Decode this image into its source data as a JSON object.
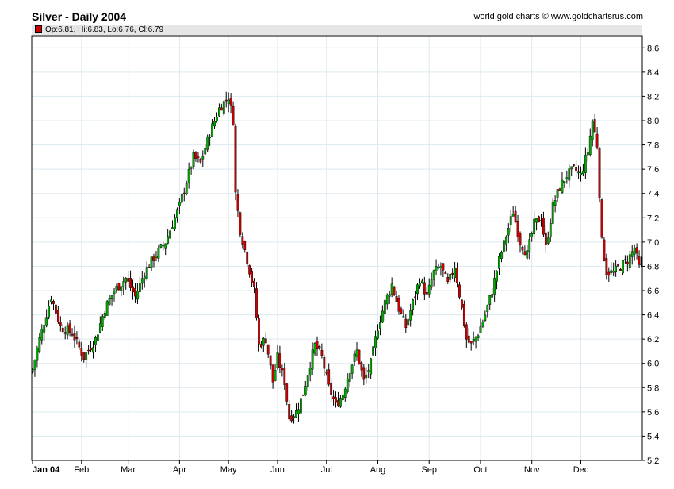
{
  "title": "Silver - Daily 2004",
  "source": "world gold charts © www.goldchartsrus.com",
  "legend": {
    "open": "Op:6.81",
    "high": "Hi:6.83",
    "low": "Lo:6.76",
    "close": "Cl:6.79"
  },
  "colors": {
    "up": "#00aa00",
    "down": "#cc0000",
    "grid": "#dde9ef",
    "legend_bg": "#e6e6e6"
  },
  "chart_data": {
    "type": "candlestick",
    "title": "Silver - Daily 2004",
    "xlabel": "",
    "ylabel": "",
    "ylim": [
      5.2,
      8.7
    ],
    "grid": true,
    "y_axis_side": "right",
    "y_ticks": [
      "5.2",
      "5.4",
      "5.6",
      "5.8",
      "6.0",
      "6.2",
      "6.4",
      "6.6",
      "6.8",
      "7.0",
      "7.2",
      "7.4",
      "7.6",
      "7.8",
      "8.0",
      "8.2",
      "8.4",
      "8.6"
    ],
    "x_ticks": [
      "Jan 04",
      "Feb",
      "Mar",
      "Apr",
      "May",
      "Jun",
      "Jul",
      "Aug",
      "Sep",
      "Oct",
      "Nov",
      "Dec"
    ],
    "close_path": [
      [
        0,
        5.95
      ],
      [
        3,
        6.2
      ],
      [
        8,
        6.55
      ],
      [
        12,
        6.3
      ],
      [
        17,
        6.25
      ],
      [
        22,
        6.05
      ],
      [
        27,
        6.2
      ],
      [
        31,
        6.45
      ],
      [
        35,
        6.6
      ],
      [
        40,
        6.7
      ],
      [
        44,
        6.55
      ],
      [
        48,
        6.75
      ],
      [
        53,
        6.9
      ],
      [
        57,
        7.0
      ],
      [
        60,
        7.15
      ],
      [
        63,
        7.3
      ],
      [
        66,
        7.5
      ],
      [
        69,
        7.7
      ],
      [
        72,
        7.65
      ],
      [
        76,
        7.9
      ],
      [
        80,
        8.1
      ],
      [
        84,
        8.2
      ],
      [
        86,
        8.0
      ],
      [
        87,
        7.4
      ],
      [
        89,
        7.1
      ],
      [
        92,
        6.85
      ],
      [
        95,
        6.6
      ],
      [
        97,
        6.15
      ],
      [
        100,
        6.2
      ],
      [
        103,
        5.85
      ],
      [
        105,
        6.05
      ],
      [
        108,
        5.85
      ],
      [
        110,
        5.55
      ],
      [
        113,
        5.6
      ],
      [
        116,
        5.75
      ],
      [
        119,
        6.0
      ],
      [
        121,
        6.15
      ],
      [
        124,
        6.05
      ],
      [
        127,
        5.8
      ],
      [
        130,
        5.65
      ],
      [
        133,
        5.75
      ],
      [
        136,
        5.95
      ],
      [
        139,
        6.1
      ],
      [
        142,
        5.85
      ],
      [
        145,
        6.0
      ],
      [
        148,
        6.3
      ],
      [
        151,
        6.5
      ],
      [
        154,
        6.65
      ],
      [
        157,
        6.45
      ],
      [
        160,
        6.3
      ],
      [
        163,
        6.5
      ],
      [
        166,
        6.7
      ],
      [
        169,
        6.55
      ],
      [
        172,
        6.75
      ],
      [
        175,
        6.8
      ],
      [
        178,
        6.65
      ],
      [
        181,
        6.8
      ],
      [
        184,
        6.45
      ],
      [
        186,
        6.2
      ],
      [
        188,
        6.15
      ],
      [
        191,
        6.25
      ],
      [
        194,
        6.4
      ],
      [
        197,
        6.6
      ],
      [
        200,
        6.85
      ],
      [
        203,
        7.05
      ],
      [
        206,
        7.25
      ],
      [
        209,
        7.0
      ],
      [
        212,
        6.9
      ],
      [
        215,
        7.15
      ],
      [
        218,
        7.2
      ],
      [
        220,
        6.95
      ],
      [
        223,
        7.3
      ],
      [
        226,
        7.45
      ],
      [
        229,
        7.55
      ],
      [
        232,
        7.6
      ],
      [
        235,
        7.55
      ],
      [
        238,
        7.75
      ],
      [
        240,
        8.0
      ],
      [
        242,
        7.8
      ],
      [
        244,
        7.0
      ],
      [
        246,
        6.75
      ],
      [
        249,
        6.75
      ],
      [
        252,
        6.8
      ],
      [
        255,
        6.85
      ],
      [
        258,
        6.95
      ],
      [
        260,
        6.79
      ]
    ]
  }
}
